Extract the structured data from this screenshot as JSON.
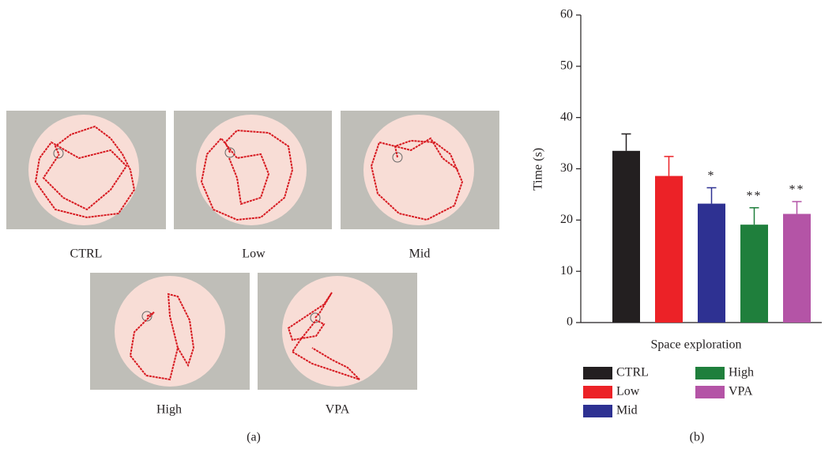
{
  "panel_a": {
    "labels": [
      "CTRL",
      "Low",
      "Mid",
      "High",
      "VPA"
    ],
    "caption": "(a)"
  },
  "chart_data": {
    "type": "bar",
    "caption": "(b)",
    "x_label": "Space exploration",
    "y_label": "Time (s)",
    "categories": [
      "CTRL",
      "Low",
      "Mid",
      "High",
      "VPA"
    ],
    "values": [
      33.5,
      28.6,
      23.2,
      19.1,
      21.2
    ],
    "errors": [
      3.3,
      3.8,
      3.1,
      3.3,
      2.4
    ],
    "annotations": [
      null,
      null,
      "*",
      "**",
      "**"
    ],
    "colors": [
      "#231f20",
      "#ec2227",
      "#2e3192",
      "#1f7f3c",
      "#b454a6"
    ],
    "ylim": [
      0,
      60
    ],
    "yticks": [
      0,
      10,
      20,
      30,
      40,
      50,
      60
    ]
  }
}
